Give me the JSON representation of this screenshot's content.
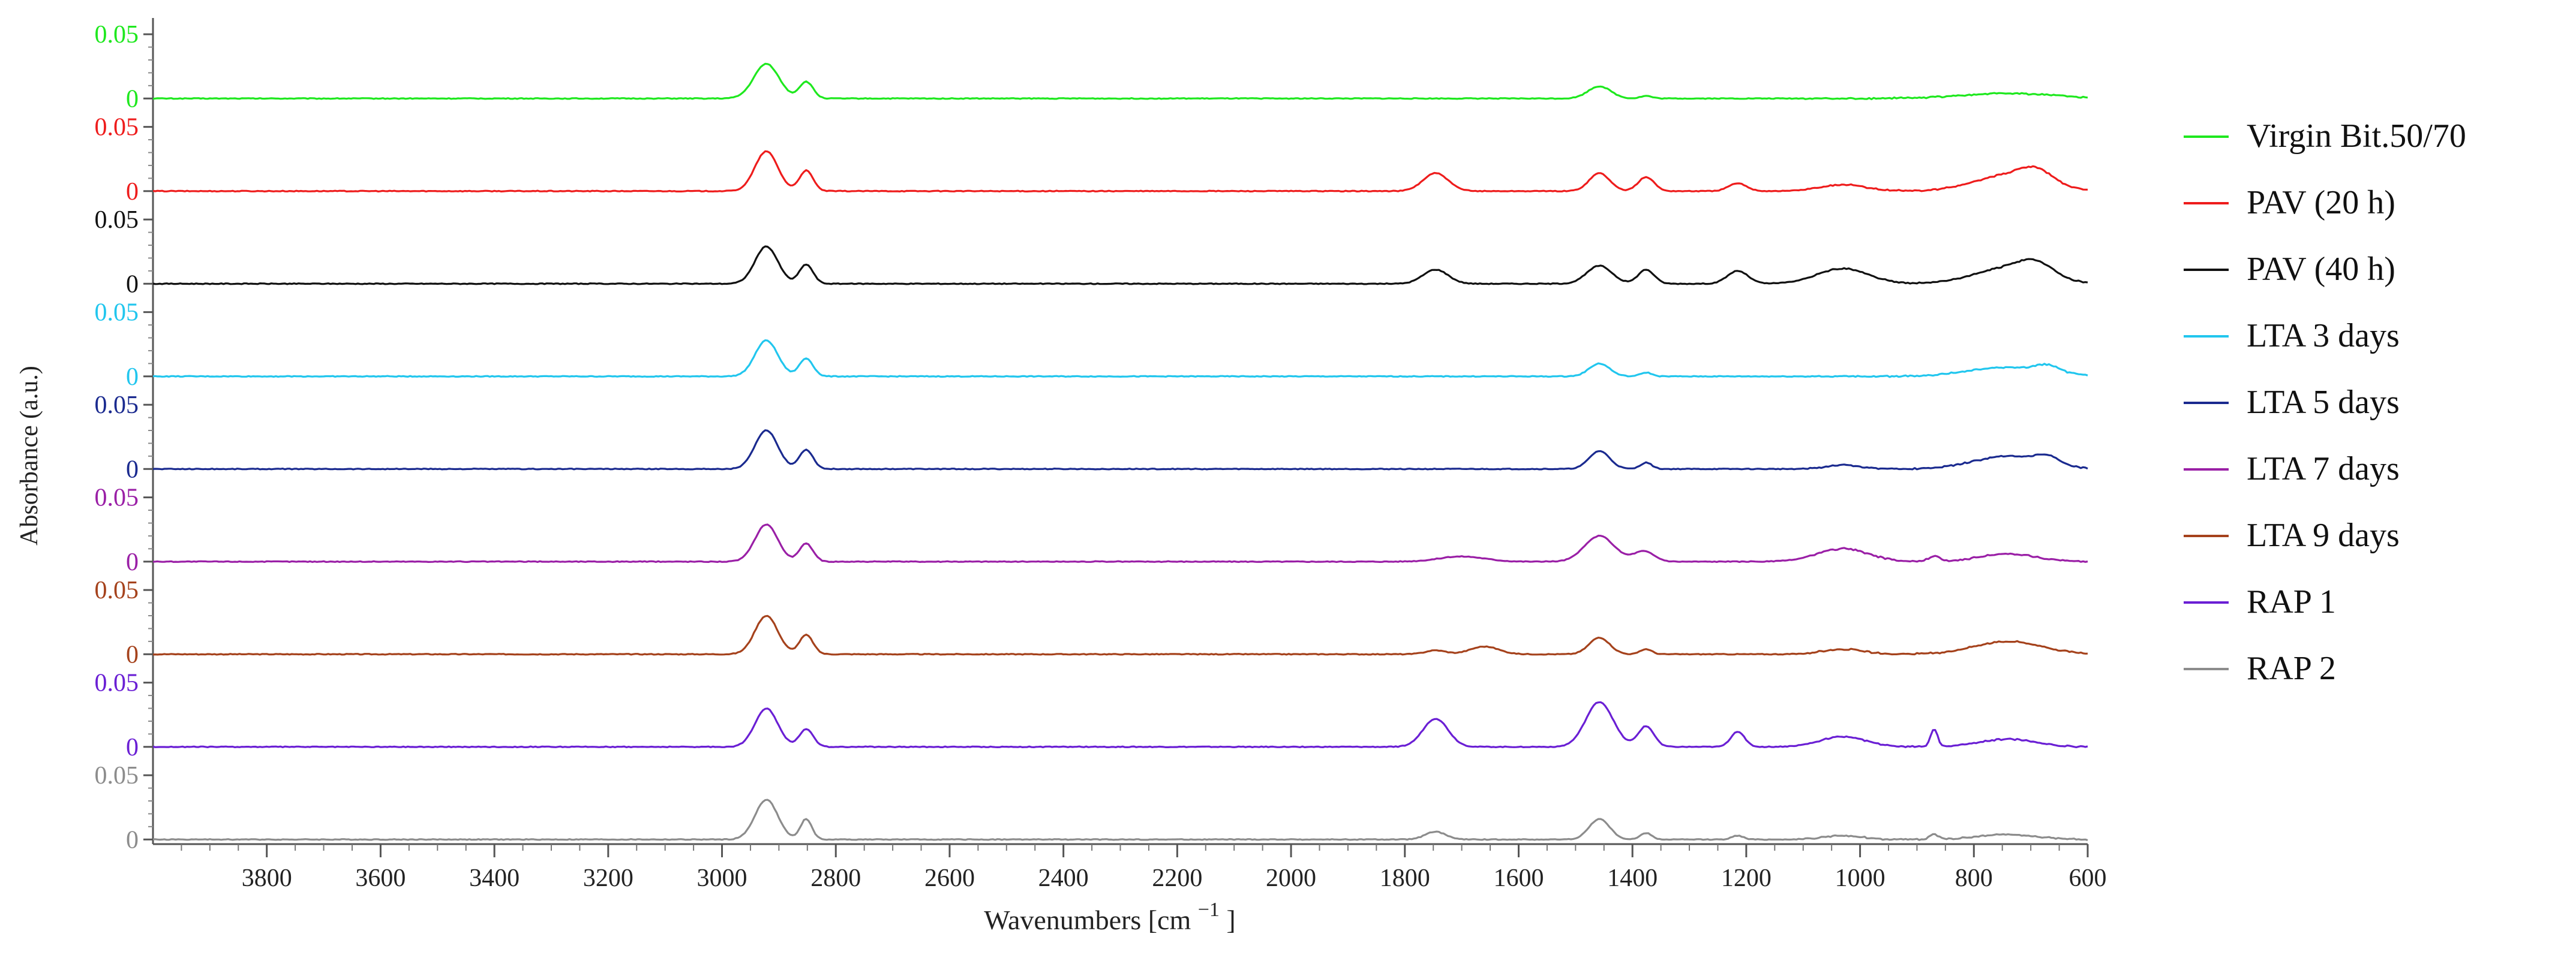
{
  "chart_data": {
    "type": "line",
    "title": "",
    "xlabel": "Wavenumbers [cm",
    "xlabel_sup": "−1",
    "xlabel_close": "]",
    "ylabel": "Absorbance (a.u.)",
    "x_reversed": true,
    "xlim": [
      4000,
      600
    ],
    "x_ticks": [
      3800,
      3600,
      3400,
      3200,
      3000,
      2800,
      2600,
      2400,
      2200,
      2000,
      1800,
      1600,
      1400,
      1200,
      1000,
      800,
      600
    ],
    "x_tick_labels": [
      "3800",
      "3600",
      "3400",
      "3200",
      "3000",
      "2800",
      "2600",
      "2400",
      "2200",
      "2000",
      "1800",
      "1600",
      "1400",
      "1200",
      "1000",
      "800",
      "600"
    ],
    "panel_ylim": [
      -0.005,
      0.065
    ],
    "panel_y_tick_labels": [
      "0",
      "0.05"
    ],
    "legend_position": "right",
    "grid": false,
    "series": [
      {
        "name": "Virgin Bit.50/70",
        "color": "#1ee81e",
        "peaks": [
          [
            2922,
            0.027,
            22
          ],
          [
            2852,
            0.013,
            12
          ],
          [
            1458,
            0.0095,
            20
          ],
          [
            1376,
            0.002,
            10
          ],
          [
            740,
            0.004,
            80
          ]
        ]
      },
      {
        "name": "PAV (20 h)",
        "color": "#ee1c1c",
        "peaks": [
          [
            2922,
            0.031,
            20
          ],
          [
            2852,
            0.016,
            12
          ],
          [
            1746,
            0.014,
            22
          ],
          [
            1458,
            0.014,
            18
          ],
          [
            1376,
            0.011,
            14
          ],
          [
            1215,
            0.006,
            16
          ],
          [
            1030,
            0.005,
            40
          ],
          [
            740,
            0.012,
            60
          ],
          [
            690,
            0.01,
            30
          ]
        ]
      },
      {
        "name": "PAV (40 h)",
        "color": "#111111",
        "peaks": [
          [
            2922,
            0.029,
            20
          ],
          [
            2852,
            0.015,
            12
          ],
          [
            1746,
            0.011,
            22
          ],
          [
            1458,
            0.014,
            22
          ],
          [
            1376,
            0.011,
            14
          ],
          [
            1215,
            0.01,
            18
          ],
          [
            1030,
            0.012,
            45
          ],
          [
            740,
            0.012,
            60
          ],
          [
            690,
            0.01,
            30
          ]
        ]
      },
      {
        "name": "LTA 3 days",
        "color": "#21c6ee",
        "peaks": [
          [
            2922,
            0.028,
            20
          ],
          [
            2852,
            0.014,
            12
          ],
          [
            1458,
            0.01,
            18
          ],
          [
            1376,
            0.003,
            10
          ],
          [
            740,
            0.007,
            70
          ],
          [
            670,
            0.005,
            20
          ]
        ]
      },
      {
        "name": "LTA 5 days",
        "color": "#1a2a8f",
        "peaks": [
          [
            2922,
            0.03,
            20
          ],
          [
            2852,
            0.015,
            12
          ],
          [
            1458,
            0.014,
            18
          ],
          [
            1376,
            0.005,
            10
          ],
          [
            1030,
            0.003,
            30
          ],
          [
            740,
            0.01,
            60
          ],
          [
            670,
            0.006,
            20
          ]
        ]
      },
      {
        "name": "LTA 7 days",
        "color": "#9a1fa6",
        "peaks": [
          [
            2922,
            0.029,
            20
          ],
          [
            2852,
            0.014,
            12
          ],
          [
            1700,
            0.004,
            40
          ],
          [
            1458,
            0.02,
            26
          ],
          [
            1380,
            0.008,
            18
          ],
          [
            1030,
            0.01,
            45
          ],
          [
            870,
            0.004,
            10
          ],
          [
            740,
            0.006,
            50
          ]
        ]
      },
      {
        "name": "LTA 9 days",
        "color": "#a5421c",
        "peaks": [
          [
            2922,
            0.03,
            20
          ],
          [
            2852,
            0.015,
            12
          ],
          [
            1746,
            0.003,
            18
          ],
          [
            1660,
            0.006,
            25
          ],
          [
            1458,
            0.013,
            18
          ],
          [
            1376,
            0.004,
            10
          ],
          [
            1030,
            0.004,
            35
          ],
          [
            740,
            0.01,
            60
          ]
        ]
      },
      {
        "name": "RAP 1",
        "color": "#6a1fd4",
        "peaks": [
          [
            2922,
            0.03,
            20
          ],
          [
            2852,
            0.014,
            12
          ],
          [
            1746,
            0.022,
            22
          ],
          [
            1458,
            0.035,
            24
          ],
          [
            1376,
            0.016,
            14
          ],
          [
            1215,
            0.012,
            12
          ],
          [
            1030,
            0.008,
            40
          ],
          [
            870,
            0.014,
            6
          ],
          [
            740,
            0.006,
            50
          ]
        ]
      },
      {
        "name": "RAP 2",
        "color": "#8c8c8c",
        "peaks": [
          [
            2922,
            0.031,
            20
          ],
          [
            2852,
            0.016,
            10
          ],
          [
            1746,
            0.006,
            18
          ],
          [
            1458,
            0.016,
            18
          ],
          [
            1376,
            0.005,
            10
          ],
          [
            1215,
            0.003,
            10
          ],
          [
            1030,
            0.003,
            35
          ],
          [
            870,
            0.004,
            8
          ],
          [
            740,
            0.004,
            50
          ]
        ]
      }
    ]
  }
}
